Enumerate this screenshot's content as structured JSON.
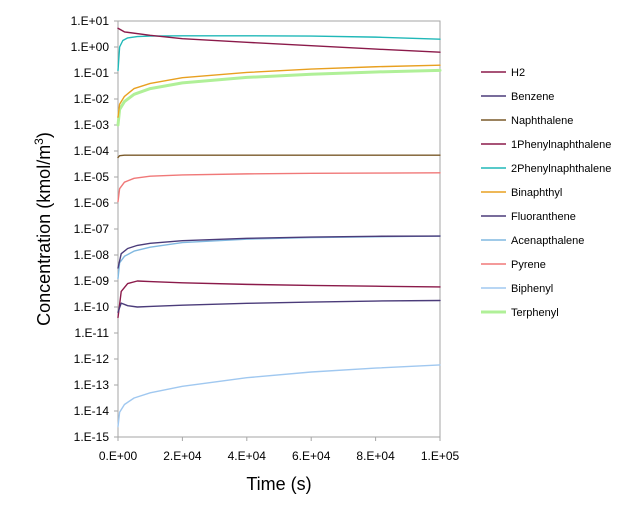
{
  "chart_data": {
    "type": "line",
    "xlabel": "Time (s)",
    "ylabel": "Concentration (kmol/m³)",
    "ylabel_main": "Concentration (kmol/m",
    "ylabel_sup": "3",
    "ylabel_end": ")",
    "yscale": "log",
    "xlim": [
      0,
      100000
    ],
    "ylim_exp": [
      -15,
      1
    ],
    "x_ticks": [
      {
        "value": 0,
        "label": "0.E+00"
      },
      {
        "value": 20000,
        "label": "2.E+04"
      },
      {
        "value": 40000,
        "label": "4.E+04"
      },
      {
        "value": 60000,
        "label": "6.E+04"
      },
      {
        "value": 80000,
        "label": "8.E+04"
      },
      {
        "value": 100000,
        "label": "1.E+05"
      }
    ],
    "y_ticks": [
      {
        "exp": 1,
        "label": "1.E+01"
      },
      {
        "exp": 0,
        "label": "1.E+00"
      },
      {
        "exp": -1,
        "label": "1.E-01"
      },
      {
        "exp": -2,
        "label": "1.E-02"
      },
      {
        "exp": -3,
        "label": "1.E-03"
      },
      {
        "exp": -4,
        "label": "1.E-04"
      },
      {
        "exp": -5,
        "label": "1.E-05"
      },
      {
        "exp": -6,
        "label": "1.E-06"
      },
      {
        "exp": -7,
        "label": "1.E-07"
      },
      {
        "exp": -8,
        "label": "1.E-08"
      },
      {
        "exp": -9,
        "label": "1.E-09"
      },
      {
        "exp": -10,
        "label": "1.E-10"
      },
      {
        "exp": -11,
        "label": "1.E-11"
      },
      {
        "exp": -12,
        "label": "1.E-12"
      },
      {
        "exp": -13,
        "label": "1.E-13"
      },
      {
        "exp": -14,
        "label": "1.E-14"
      },
      {
        "exp": -15,
        "label": "1.E-15"
      }
    ],
    "grid": false,
    "legend_position": "right",
    "series": [
      {
        "name": "H2",
        "color": "#8B1A4A",
        "x": [
          0,
          2000,
          10000,
          20000,
          40000,
          60000,
          80000,
          100000
        ],
        "log10_y": [
          0.72,
          0.58,
          0.45,
          0.32,
          0.18,
          0.05,
          -0.08,
          -0.2
        ]
      },
      {
        "name": "Benzene",
        "color": "#4B3C7A",
        "x": [
          0,
          1000,
          3000,
          6000,
          10000,
          20000,
          40000,
          60000,
          80000,
          100000
        ],
        "log10_y": [
          -10.2,
          -9.85,
          -9.95,
          -10.0,
          -9.98,
          -9.93,
          -9.86,
          -9.81,
          -9.77,
          -9.75
        ]
      },
      {
        "name": "Naphthalene",
        "color": "#7A5A2A",
        "x": [
          0,
          500,
          2000,
          10000,
          50000,
          100000
        ],
        "log10_y": [
          -4.25,
          -4.18,
          -4.16,
          -4.16,
          -4.16,
          -4.16
        ]
      },
      {
        "name": "1Phenylnaphthalene",
        "color": "#8B1A4A",
        "x": [
          0,
          1000,
          3000,
          6000,
          10000,
          20000,
          40000,
          60000,
          80000,
          100000
        ],
        "log10_y": [
          -10.4,
          -9.4,
          -9.1,
          -9.0,
          -9.02,
          -9.07,
          -9.13,
          -9.17,
          -9.2,
          -9.23
        ]
      },
      {
        "name": "2Phenylnaphthalene",
        "color": "#20B8B8",
        "x": [
          0,
          500,
          1500,
          3000,
          6000,
          10000,
          20000,
          40000,
          60000,
          80000,
          100000
        ],
        "log10_y": [
          -0.9,
          0.0,
          0.25,
          0.35,
          0.4,
          0.42,
          0.43,
          0.43,
          0.42,
          0.38,
          0.3
        ]
      },
      {
        "name": "Binaphthyl",
        "color": "#E8A020",
        "x": [
          0,
          500,
          2000,
          5000,
          10000,
          20000,
          40000,
          60000,
          80000,
          100000
        ],
        "log10_y": [
          -2.7,
          -2.2,
          -1.9,
          -1.6,
          -1.4,
          -1.18,
          -0.98,
          -0.85,
          -0.76,
          -0.7
        ]
      },
      {
        "name": "Fluoranthene",
        "color": "#4B3C7A",
        "x": [
          0,
          1000,
          3000,
          6000,
          10000,
          20000,
          40000,
          60000,
          80000,
          100000
        ],
        "log10_y": [
          -8.5,
          -7.95,
          -7.75,
          -7.63,
          -7.55,
          -7.45,
          -7.36,
          -7.31,
          -7.28,
          -7.27
        ]
      },
      {
        "name": "Acenapthalene",
        "color": "#80B8E0",
        "x": [
          0,
          500,
          2000,
          5000,
          10000,
          20000,
          40000,
          60000,
          80000,
          100000
        ],
        "log10_y": [
          -8.9,
          -8.3,
          -8.05,
          -7.85,
          -7.7,
          -7.52,
          -7.39,
          -7.33,
          -7.3,
          -7.27
        ]
      },
      {
        "name": "Pyrene",
        "color": "#F07878",
        "x": [
          0,
          500,
          2000,
          5000,
          10000,
          20000,
          40000,
          60000,
          80000,
          100000
        ],
        "log10_y": [
          -5.95,
          -5.45,
          -5.2,
          -5.05,
          -4.97,
          -4.92,
          -4.88,
          -4.86,
          -4.85,
          -4.84
        ]
      },
      {
        "name": "Biphenyl",
        "color": "#A0C8F0",
        "x": [
          0,
          500,
          2000,
          5000,
          10000,
          20000,
          40000,
          60000,
          80000,
          100000
        ],
        "log10_y": [
          -14.6,
          -14.05,
          -13.75,
          -13.5,
          -13.3,
          -13.05,
          -12.72,
          -12.5,
          -12.35,
          -12.23
        ]
      },
      {
        "name": "Terphenyl",
        "color": "#B0F098",
        "x": [
          0,
          500,
          2000,
          5000,
          10000,
          20000,
          40000,
          60000,
          80000,
          100000
        ],
        "log10_y": [
          -3.0,
          -2.4,
          -2.1,
          -1.82,
          -1.6,
          -1.38,
          -1.17,
          -1.05,
          -0.96,
          -0.9
        ]
      }
    ]
  }
}
